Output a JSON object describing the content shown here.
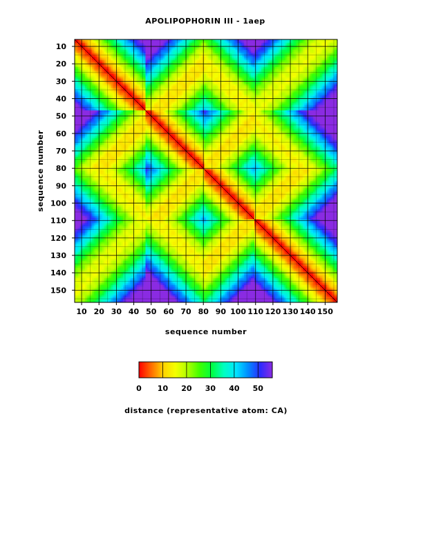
{
  "chart_data": {
    "type": "heatmap",
    "title": "APOLIPOPHORIN III - 1aep",
    "xlabel": "sequence number",
    "ylabel": "sequence number",
    "x_ticks": [
      10,
      20,
      30,
      40,
      50,
      60,
      70,
      80,
      90,
      100,
      110,
      120,
      130,
      140,
      150
    ],
    "y_ticks": [
      10,
      20,
      30,
      40,
      50,
      60,
      70,
      80,
      90,
      100,
      110,
      120,
      130,
      140,
      150
    ],
    "xlim": [
      6,
      157
    ],
    "ylim": [
      6,
      157
    ],
    "y_inverted": true,
    "grid": true,
    "secondary_grid_step": 5,
    "helix_centers": [
      33,
      67,
      94,
      124
    ],
    "helix_bounds": [
      6,
      19,
      47,
      50,
      81,
      108,
      140,
      157
    ],
    "colorbar": {
      "ticks": [
        0,
        10,
        20,
        30,
        40,
        50
      ],
      "range": [
        0,
        56
      ],
      "label": "distance (representative atom: CA)",
      "colors": [
        "#ff0000",
        "#ff6a00",
        "#ffd200",
        "#f4ff00",
        "#b0ff00",
        "#40ff00",
        "#00ff40",
        "#00ffc0",
        "#00e6ff",
        "#008cff",
        "#2b2bff",
        "#8a2be2"
      ]
    }
  }
}
